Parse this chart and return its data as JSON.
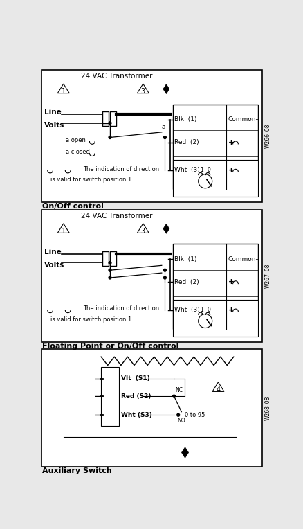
{
  "bg_color": "#e8e8e8",
  "section1_label": "On/Off control",
  "section2_label": "Floating Point or On/Off control",
  "section3_label": "Auxiliary Switch",
  "watermark1": "W266_08",
  "watermark2": "W267_08",
  "watermark3": "W268_08"
}
